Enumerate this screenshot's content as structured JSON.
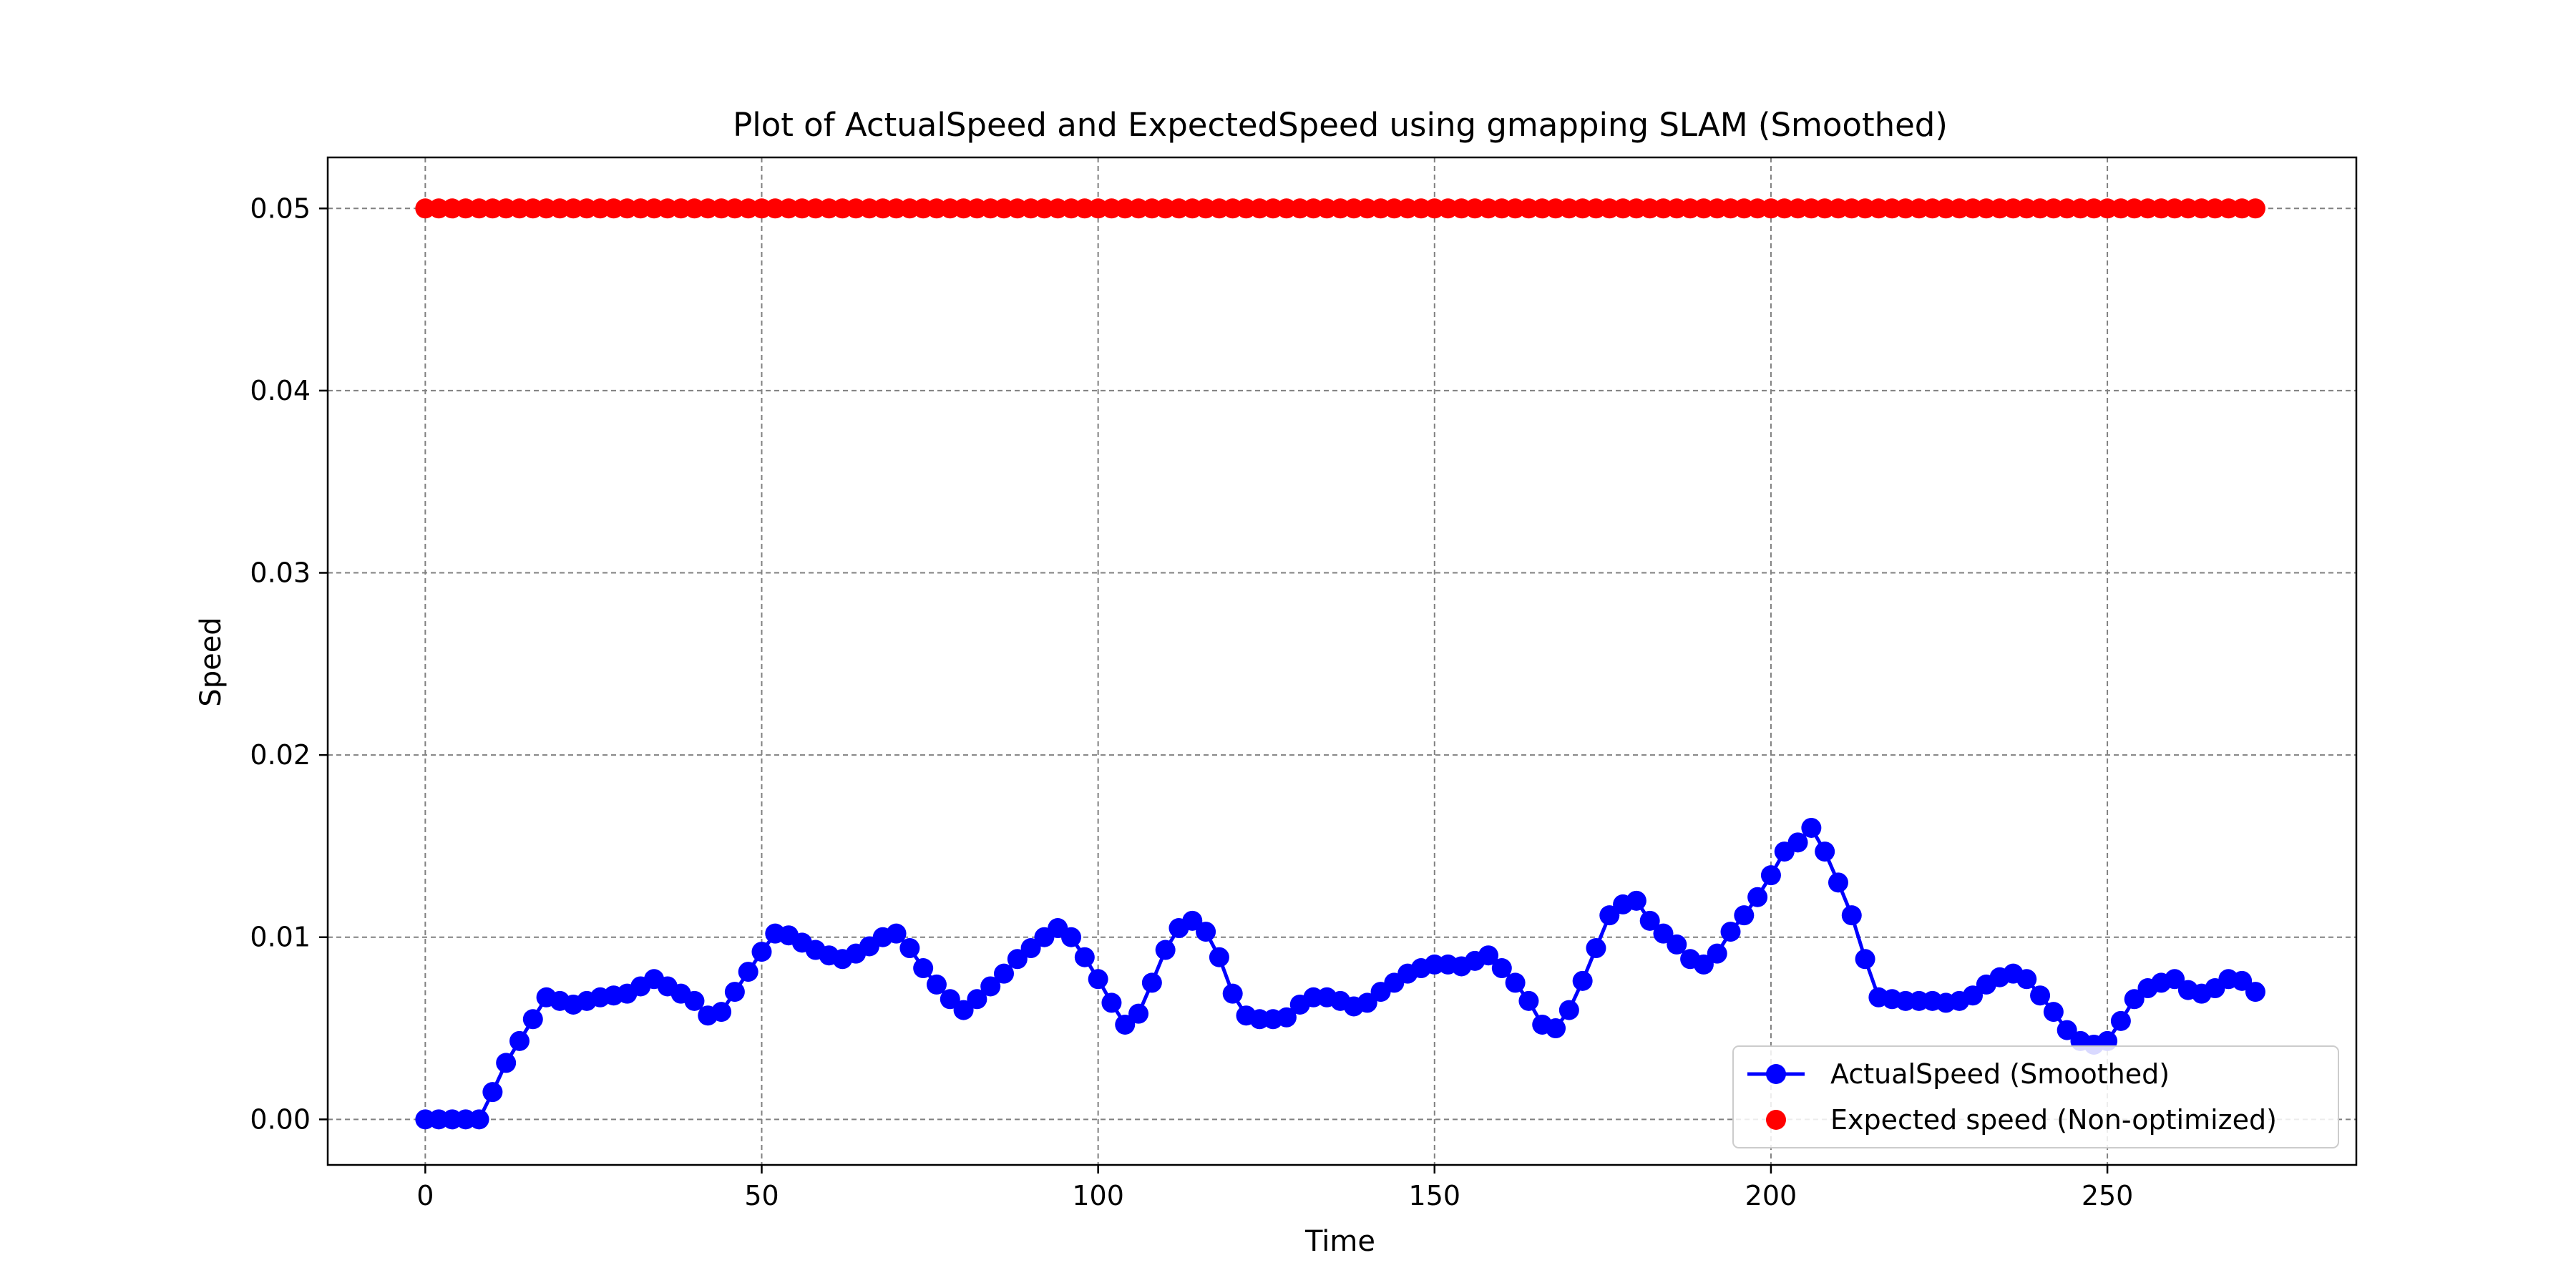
{
  "chart_data": {
    "type": "line",
    "title": "Plot of ActualSpeed and ExpectedSpeed using gmapping SLAM (Smoothed)",
    "xlabel": "Time",
    "ylabel": "Speed",
    "xlim": [
      -14.5,
      287
    ],
    "ylim": [
      -0.0025,
      0.0528
    ],
    "x_ticks": [
      0,
      50,
      100,
      150,
      200,
      250
    ],
    "y_ticks": [
      0.0,
      0.01,
      0.02,
      0.03,
      0.04,
      0.05
    ],
    "x_tick_labels": [
      "0",
      "50",
      "100",
      "150",
      "200",
      "250"
    ],
    "y_tick_labels": [
      "0.00",
      "0.01",
      "0.02",
      "0.03",
      "0.04",
      "0.05"
    ],
    "grid": true,
    "legend_position": "lower-right",
    "series": [
      {
        "name": "ActualSpeed (Smoothed)",
        "style": "line-marker",
        "color": "#0000ff",
        "x": [
          0,
          2,
          4,
          6,
          8,
          10,
          12,
          14,
          16,
          18,
          20,
          22,
          24,
          26,
          28,
          30,
          32,
          34,
          36,
          38,
          40,
          42,
          44,
          46,
          48,
          50,
          52,
          54,
          56,
          58,
          60,
          62,
          64,
          66,
          68,
          70,
          72,
          74,
          76,
          78,
          80,
          82,
          84,
          86,
          88,
          90,
          92,
          94,
          96,
          98,
          100,
          102,
          104,
          106,
          108,
          110,
          112,
          114,
          116,
          118,
          120,
          122,
          124,
          126,
          128,
          130,
          132,
          134,
          136,
          138,
          140,
          142,
          144,
          146,
          148,
          150,
          152,
          154,
          156,
          158,
          160,
          162,
          164,
          166,
          168,
          170,
          172,
          174,
          176,
          178,
          180,
          182,
          184,
          186,
          188,
          190,
          192,
          194,
          196,
          198,
          200,
          202,
          204,
          206,
          208,
          210,
          212,
          214,
          216,
          218,
          220,
          222,
          224,
          226,
          228,
          230,
          232,
          234,
          236,
          238,
          240,
          242,
          244,
          246,
          248,
          250,
          252,
          254,
          256,
          258,
          260,
          262,
          264,
          266,
          268,
          270,
          272
        ],
        "y": [
          0.0,
          0.0,
          0.0,
          0.0,
          0.0,
          0.0015,
          0.0031,
          0.0043,
          0.0055,
          0.0067,
          0.0065,
          0.0063,
          0.0065,
          0.0067,
          0.0068,
          0.0069,
          0.0073,
          0.0077,
          0.0073,
          0.0069,
          0.0065,
          0.0057,
          0.0059,
          0.007,
          0.0081,
          0.0092,
          0.0102,
          0.0101,
          0.0097,
          0.0093,
          0.009,
          0.0088,
          0.0091,
          0.0095,
          0.01,
          0.0102,
          0.0094,
          0.0083,
          0.0074,
          0.0066,
          0.006,
          0.0066,
          0.0073,
          0.008,
          0.0088,
          0.0094,
          0.01,
          0.0105,
          0.01,
          0.0089,
          0.0077,
          0.0064,
          0.0052,
          0.0058,
          0.0075,
          0.0093,
          0.0105,
          0.0109,
          0.0103,
          0.0089,
          0.0069,
          0.0057,
          0.0055,
          0.0055,
          0.0056,
          0.0063,
          0.0067,
          0.0067,
          0.0065,
          0.0062,
          0.0064,
          0.007,
          0.0075,
          0.008,
          0.0083,
          0.0085,
          0.0085,
          0.0084,
          0.0087,
          0.009,
          0.0083,
          0.0075,
          0.0065,
          0.0052,
          0.005,
          0.006,
          0.0076,
          0.0094,
          0.0112,
          0.0118,
          0.012,
          0.0109,
          0.0102,
          0.0096,
          0.0088,
          0.0085,
          0.0091,
          0.0103,
          0.0112,
          0.0122,
          0.0134,
          0.0147,
          0.0152,
          0.016,
          0.0147,
          0.013,
          0.0112,
          0.0088,
          0.0067,
          0.0066,
          0.0065,
          0.0065,
          0.0065,
          0.0064,
          0.0065,
          0.0068,
          0.0074,
          0.0078,
          0.008,
          0.0077,
          0.0068,
          0.0059,
          0.0049,
          0.0043,
          0.0041,
          0.0043,
          0.0054,
          0.0066,
          0.0072,
          0.0075,
          0.0077,
          0.0071,
          0.0069,
          0.0072,
          0.0077,
          0.0076,
          0.007
        ]
      },
      {
        "name": "Expected speed (Non-optimized)",
        "style": "scatter",
        "color": "#ff0000",
        "x_start": 0,
        "x_end": 272,
        "x_step": 2,
        "value": 0.05
      }
    ]
  }
}
